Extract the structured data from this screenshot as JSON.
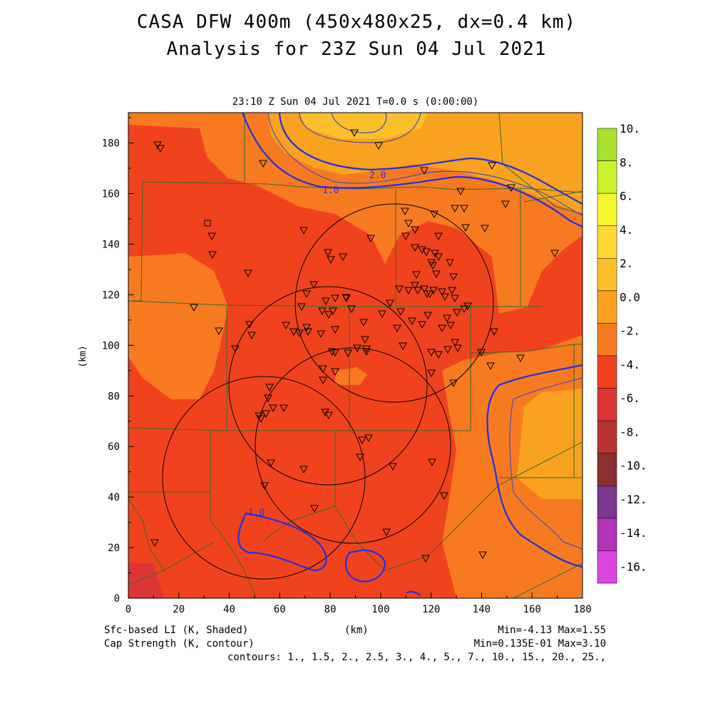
{
  "header": {
    "title_line1": "CASA DFW 400m (450x480x25, dx=0.4 km)",
    "title_line2": "Analysis for 23Z Sun 04 Jul 2021",
    "subtitle": "23:10 Z Sun 04 Jul 2021    T=0.0 s (0:00:00)"
  },
  "axes": {
    "xlabel": "(km)",
    "ylabel": "(km)",
    "xticks": [
      "0",
      "20",
      "40",
      "60",
      "80",
      "100",
      "120",
      "140",
      "160",
      "180"
    ],
    "yticks": [
      "0",
      "20",
      "40",
      "60",
      "80",
      "100",
      "120",
      "140",
      "160",
      "180"
    ],
    "xlim": [
      0,
      180
    ],
    "ylim": [
      0,
      192
    ]
  },
  "colorbar": {
    "labels": [
      "10.",
      "8.",
      "6.",
      "4.",
      "2.",
      "0.0",
      "-2.",
      "-4.",
      "-6.",
      "-8.",
      "-10.",
      "-12.",
      "-14.",
      "-16."
    ],
    "colors": [
      "#a6e22e",
      "#ccf22e",
      "#f6f62e",
      "#fdd835",
      "#fbbf2b",
      "#f9a21f",
      "#f77a21",
      "#f0431d",
      "#dd3536",
      "#b83434",
      "#8b3030",
      "#7b3690",
      "#b233b8",
      "#dc45e0"
    ]
  },
  "contour_labels": [
    "2.0",
    "1.0",
    "1.0"
  ],
  "footer": {
    "left1": "Sfc-based LI (K, Shaded)",
    "left2": "Cap Strength (K, contour)",
    "center": "(km)",
    "right1": "Min=-4.13 Max=1.55",
    "right2": "Min=0.135E-01 Max=3.10",
    "contours": "contours: 1., 1.5, 2., 2.5, 3., 4., 5., 7., 10., 15., 20., 25.,"
  },
  "map": {
    "station_marker": "triangle-down-icon",
    "radar_rings": 4
  }
}
